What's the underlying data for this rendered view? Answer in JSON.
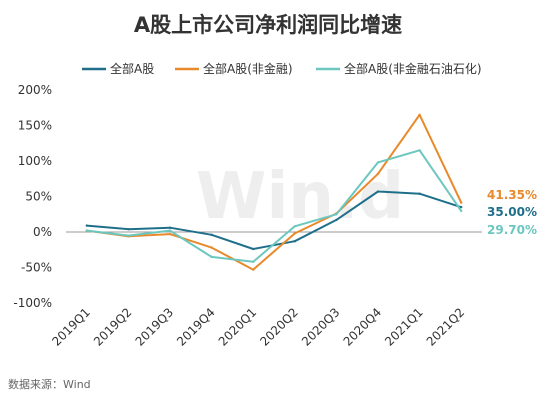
{
  "chart_data": {
    "type": "line",
    "title": "A股上市公司净利润同比增速",
    "categories": [
      "2019Q1",
      "2019Q2",
      "2019Q3",
      "2019Q4",
      "2020Q1",
      "2020Q2",
      "2020Q3",
      "2020Q4",
      "2021Q1",
      "2021Q2"
    ],
    "y_ticks": [
      "200%",
      "150%",
      "100%",
      "50%",
      "0%",
      "-50%",
      "-100%"
    ],
    "ylim": [
      -100,
      200
    ],
    "ylabel": "",
    "xlabel": "",
    "legend_position": "top",
    "grid": false,
    "series": [
      {
        "name": "全部A股",
        "color": "#1f6f8b",
        "values": [
          9,
          4,
          6,
          -4,
          -24,
          -13,
          17,
          57,
          54,
          35.0
        ],
        "end_label": "35.00%"
      },
      {
        "name": "全部A股(非金融)",
        "color": "#e8892b",
        "values": [
          2,
          -6,
          -3,
          -22,
          -53,
          -2,
          26,
          82,
          165,
          41.35
        ],
        "end_label": "41.35%"
      },
      {
        "name": "全部A股(非金融石油石化)",
        "color": "#6cc7bf",
        "values": [
          2,
          -5,
          2,
          -35,
          -42,
          8,
          25,
          98,
          115,
          29.7
        ],
        "end_label": "29.70%"
      }
    ]
  },
  "watermark": "Win.d",
  "source": "数据来源：Wind"
}
